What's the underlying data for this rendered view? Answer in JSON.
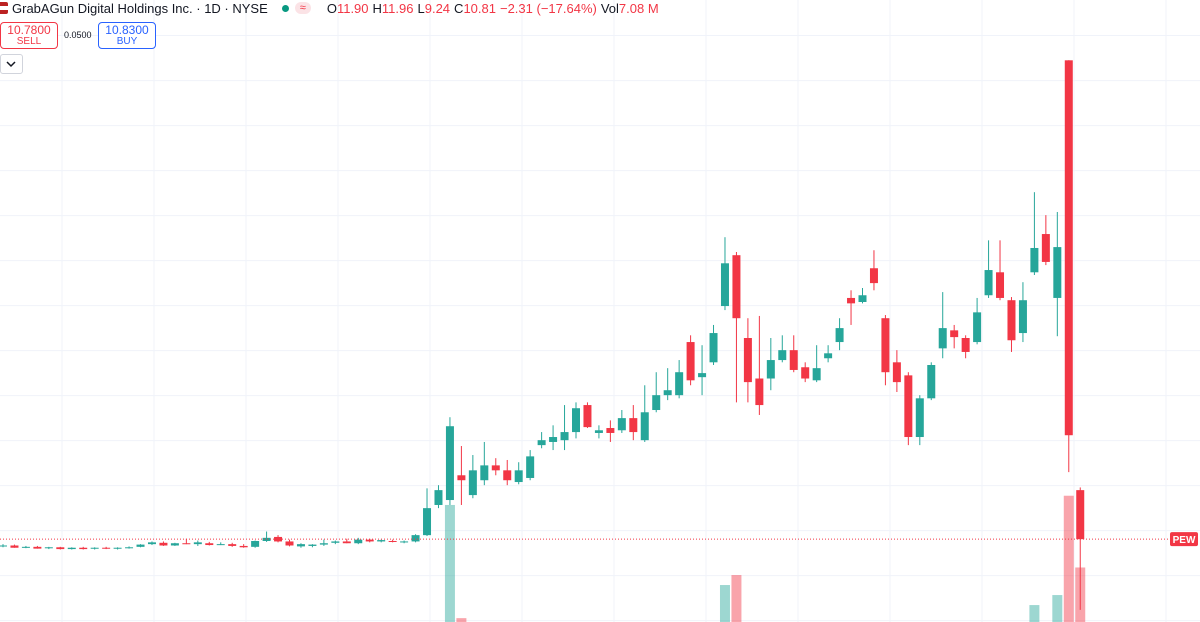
{
  "header": {
    "title": "GrabAGun Digital Holdings Inc. · 1D · NYSE",
    "badge": "≈",
    "ohlc": [
      {
        "key": "O",
        "value": "11.90"
      },
      {
        "key": "H",
        "value": "11.96"
      },
      {
        "key": "L",
        "value": "9.24"
      },
      {
        "key": "C",
        "value": "10.81"
      }
    ],
    "change": "−2.31 (−17.64%)",
    "vol_key": "Vol",
    "vol_value": "7.08 M"
  },
  "trade": {
    "sell_price": "10.7800",
    "sell_label": "SELL",
    "spread": "0.0500",
    "buy_price": "10.8300",
    "buy_label": "BUY"
  },
  "chart_data": {
    "type": "candlestick",
    "symbol_label": "PEW",
    "up_color": "#26a69a",
    "down_color": "#f23645",
    "ylim": [
      8.97,
      22.79
    ],
    "hgrid": [
      9,
      10,
      11,
      12,
      13,
      14,
      15,
      16,
      17,
      18,
      19,
      20,
      21,
      22
    ],
    "candles": [
      [
        10.66,
        10.7,
        10.63,
        10.67
      ],
      [
        10.67,
        10.69,
        10.62,
        10.62
      ],
      [
        10.63,
        10.66,
        10.61,
        10.64
      ],
      [
        10.64,
        10.66,
        10.6,
        10.6
      ],
      [
        10.61,
        10.64,
        10.59,
        10.63
      ],
      [
        10.63,
        10.64,
        10.58,
        10.59
      ],
      [
        10.59,
        10.63,
        10.58,
        10.62
      ],
      [
        10.62,
        10.64,
        10.58,
        10.59
      ],
      [
        10.6,
        10.63,
        10.58,
        10.62
      ],
      [
        10.62,
        10.64,
        10.59,
        10.6
      ],
      [
        10.6,
        10.63,
        10.58,
        10.62
      ],
      [
        10.62,
        10.65,
        10.6,
        10.63
      ],
      [
        10.64,
        10.7,
        10.63,
        10.69
      ],
      [
        10.7,
        10.76,
        10.68,
        10.74
      ],
      [
        10.73,
        10.76,
        10.66,
        10.67
      ],
      [
        10.67,
        10.73,
        10.66,
        10.72
      ],
      [
        10.72,
        10.82,
        10.7,
        10.7
      ],
      [
        10.7,
        10.78,
        10.66,
        10.74
      ],
      [
        10.72,
        10.75,
        10.67,
        10.68
      ],
      [
        10.7,
        10.74,
        10.68,
        10.7
      ],
      [
        10.7,
        10.73,
        10.64,
        10.66
      ],
      [
        10.66,
        10.7,
        10.62,
        10.63
      ],
      [
        10.64,
        10.78,
        10.62,
        10.77
      ],
      [
        10.77,
        10.98,
        10.75,
        10.84
      ],
      [
        10.86,
        10.9,
        10.74,
        10.76
      ],
      [
        10.76,
        10.8,
        10.65,
        10.67
      ],
      [
        10.65,
        10.72,
        10.62,
        10.7
      ],
      [
        10.66,
        10.7,
        10.63,
        10.69
      ],
      [
        10.69,
        10.8,
        10.66,
        10.72
      ],
      [
        10.73,
        10.78,
        10.7,
        10.76
      ],
      [
        10.76,
        10.82,
        10.72,
        10.72
      ],
      [
        10.72,
        10.84,
        10.7,
        10.8
      ],
      [
        10.8,
        10.82,
        10.74,
        10.76
      ],
      [
        10.76,
        10.8,
        10.74,
        10.79
      ],
      [
        10.77,
        10.8,
        10.74,
        10.75
      ],
      [
        10.75,
        10.78,
        10.72,
        10.76
      ],
      [
        10.76,
        10.92,
        10.74,
        10.9
      ],
      [
        10.9,
        11.94,
        10.88,
        11.5
      ],
      [
        11.57,
        12.01,
        11.5,
        11.9
      ],
      [
        11.68,
        13.52,
        11.57,
        13.32
      ],
      [
        12.23,
        12.88,
        11.57,
        12.12
      ],
      [
        11.79,
        12.68,
        11.72,
        12.34
      ],
      [
        12.12,
        12.97,
        12.01,
        12.45
      ],
      [
        12.45,
        12.61,
        12.23,
        12.34
      ],
      [
        12.34,
        12.57,
        12.01,
        12.12
      ],
      [
        12.08,
        12.52,
        12.03,
        12.34
      ],
      [
        12.17,
        12.79,
        12.12,
        12.65
      ],
      [
        12.9,
        13.19,
        12.83,
        13.01
      ],
      [
        12.97,
        13.34,
        12.79,
        13.08
      ],
      [
        13.01,
        13.79,
        12.79,
        13.19
      ],
      [
        13.19,
        13.85,
        13.05,
        13.72
      ],
      [
        13.79,
        13.85,
        13.28,
        13.3
      ],
      [
        13.17,
        13.34,
        13.05,
        13.23
      ],
      [
        13.28,
        13.45,
        12.97,
        13.17
      ],
      [
        13.23,
        13.68,
        13.17,
        13.5
      ],
      [
        13.5,
        13.79,
        13.01,
        13.19
      ],
      [
        13.01,
        14.23,
        12.97,
        13.63
      ],
      [
        13.68,
        14.52,
        13.63,
        14.01
      ],
      [
        14.01,
        14.61,
        13.9,
        14.12
      ],
      [
        14.01,
        14.79,
        13.94,
        14.52
      ],
      [
        15.19,
        15.34,
        14.23,
        14.34
      ],
      [
        14.41,
        15.12,
        14.01,
        14.5
      ],
      [
        14.74,
        15.57,
        14.68,
        15.39
      ],
      [
        15.99,
        17.52,
        15.9,
        16.94
      ],
      [
        17.12,
        17.19,
        13.85,
        15.72
      ],
      [
        15.28,
        15.72,
        13.85,
        14.3
      ],
      [
        14.38,
        15.77,
        13.57,
        13.79
      ],
      [
        14.38,
        15.28,
        14.12,
        14.79
      ],
      [
        14.79,
        15.34,
        14.74,
        15.01
      ],
      [
        15.01,
        15.34,
        14.52,
        14.57
      ],
      [
        14.63,
        14.74,
        14.3,
        14.38
      ],
      [
        14.34,
        15.12,
        14.3,
        14.61
      ],
      [
        14.83,
        15.12,
        14.74,
        14.94
      ],
      [
        15.19,
        15.72,
        15.01,
        15.5
      ],
      [
        16.17,
        16.34,
        15.57,
        16.05
      ],
      [
        16.08,
        16.39,
        16.05,
        16.23
      ],
      [
        16.83,
        17.23,
        16.34,
        16.5
      ],
      [
        15.72,
        15.79,
        14.23,
        14.52
      ],
      [
        14.74,
        15.01,
        14.08,
        14.3
      ],
      [
        14.45,
        14.52,
        12.9,
        13.08
      ],
      [
        13.08,
        14.01,
        12.9,
        13.94
      ],
      [
        13.94,
        14.74,
        13.9,
        14.68
      ],
      [
        15.05,
        16.3,
        14.83,
        15.5
      ],
      [
        15.45,
        15.57,
        15.05,
        15.3
      ],
      [
        15.28,
        15.34,
        14.83,
        14.97
      ],
      [
        15.19,
        16.17,
        15.14,
        15.85
      ],
      [
        16.23,
        17.45,
        16.17,
        16.79
      ],
      [
        16.74,
        17.45,
        16.12,
        16.17
      ],
      [
        16.12,
        16.19,
        14.97,
        15.23
      ],
      [
        15.39,
        16.52,
        15.19,
        16.12
      ],
      [
        16.74,
        18.52,
        16.68,
        17.28
      ],
      [
        17.59,
        18.01,
        16.9,
        16.97
      ],
      [
        16.17,
        18.08,
        15.32,
        17.3
      ],
      [
        21.45,
        21.45,
        12.3,
        13.12
      ],
      [
        11.9,
        11.96,
        9.24,
        10.81
      ]
    ],
    "volume": [
      null,
      null,
      null,
      null,
      null,
      null,
      null,
      null,
      null,
      null,
      null,
      null,
      null,
      null,
      null,
      null,
      null,
      null,
      null,
      null,
      null,
      null,
      null,
      null,
      null,
      null,
      null,
      null,
      null,
      null,
      null,
      null,
      null,
      null,
      null,
      null,
      null,
      null,
      null,
      15.2,
      0.5,
      null,
      null,
      null,
      null,
      null,
      null,
      null,
      null,
      null,
      null,
      null,
      null,
      null,
      null,
      null,
      null,
      null,
      null,
      null,
      null,
      null,
      null,
      4.8,
      6.1,
      null,
      null,
      null,
      null,
      null,
      null,
      null,
      null,
      null,
      null,
      null,
      null,
      null,
      null,
      null,
      null,
      null,
      null,
      null,
      null,
      null,
      null,
      null,
      null,
      null,
      2.2,
      null,
      3.5,
      16.4,
      7.08
    ]
  }
}
